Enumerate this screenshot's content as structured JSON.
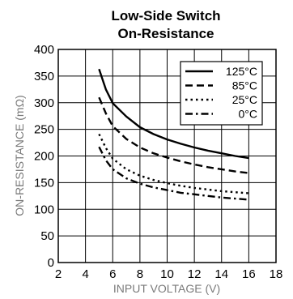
{
  "chart_data": {
    "type": "line",
    "title": "Low-Side Switch",
    "subtitle": "On-Resistance",
    "xlabel": "INPUT VOLTAGE (V)",
    "ylabel": "ON-RESISTANCE (mΩ)",
    "xlim": [
      2,
      18
    ],
    "ylim": [
      0,
      400
    ],
    "xticks": [
      2,
      4,
      6,
      8,
      10,
      12,
      14,
      16,
      18
    ],
    "yticks": [
      0,
      50,
      100,
      150,
      200,
      250,
      300,
      350,
      400
    ],
    "grid": true,
    "legend_position": "top-right",
    "series": [
      {
        "name": "125°C",
        "dash": "solid",
        "x": [
          5,
          5.5,
          6,
          7,
          8,
          9,
          10,
          11,
          12,
          13,
          14,
          15,
          16
        ],
        "y": [
          363,
          325,
          299,
          274,
          254,
          241,
          231,
          223,
          216,
          210,
          205,
          200,
          196
        ]
      },
      {
        "name": "85°C",
        "dash": "dashed",
        "x": [
          5,
          5.5,
          6,
          7,
          8,
          9,
          10,
          11,
          12,
          13,
          14,
          15,
          16
        ],
        "y": [
          310,
          280,
          256,
          232,
          216,
          205,
          197,
          190,
          184,
          179,
          175,
          171,
          168
        ]
      },
      {
        "name": "25°C",
        "dash": "dotted",
        "x": [
          5,
          5.5,
          6,
          7,
          8,
          9,
          10,
          11,
          12,
          13,
          14,
          15,
          16
        ],
        "y": [
          241,
          215,
          195,
          175,
          163,
          155,
          149,
          144,
          140,
          137,
          134,
          132,
          130
        ]
      },
      {
        "name": "0°C",
        "dash": "dashdot",
        "x": [
          5,
          5.5,
          6,
          7,
          8,
          9,
          10,
          11,
          12,
          13,
          14,
          15,
          16
        ],
        "y": [
          217,
          192,
          175,
          158,
          148,
          141,
          136,
          131,
          128,
          125,
          122,
          120,
          118
        ]
      }
    ]
  }
}
